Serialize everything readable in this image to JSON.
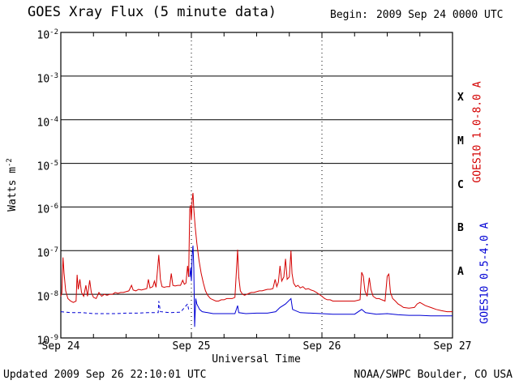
{
  "chart_data": {
    "type": "line",
    "title": "GOES Xray Flux (5 minute data)",
    "begin_label": "Begin:",
    "begin_value": "2009 Sep 24 0000 UTC",
    "xlabel": "Universal Time",
    "ylabel": "Watts m^-2",
    "x_unit": "hours since 2009 Sep 24 0000 UTC",
    "xlim": [
      0,
      72
    ],
    "ylim": [
      1e-09,
      0.01
    ],
    "grid": "solid horizontal lines at each decade, dotted vertical lines at day boundaries",
    "x_ticks": [
      {
        "hours": 0,
        "label": "Sep 24"
      },
      {
        "hours": 24,
        "label": "Sep 25"
      },
      {
        "hours": 48,
        "label": "Sep 26"
      },
      {
        "hours": 72,
        "label": "Sep 27"
      }
    ],
    "y_tick_log10": [
      -2,
      -3,
      -4,
      -5,
      -6,
      -7,
      -8,
      -9
    ],
    "grid_log10": [
      -3,
      -4,
      -5,
      -6,
      -7,
      -8
    ],
    "day_lines_hours": [
      24,
      48
    ],
    "flare_classes": [
      {
        "label": "X",
        "log10_flux": -3.5
      },
      {
        "label": "M",
        "log10_flux": -4.5
      },
      {
        "label": "C",
        "log10_flux": -5.5
      },
      {
        "label": "B",
        "log10_flux": -6.5
      },
      {
        "label": "A",
        "log10_flux": -7.5
      }
    ],
    "series": [
      {
        "name": "GOES10 1.0-8.0 A",
        "color": "#d40000",
        "points": [
          [
            0,
            9e-09
          ],
          [
            0.2,
            1.1e-08
          ],
          [
            0.4,
            7e-08
          ],
          [
            0.6,
            3e-08
          ],
          [
            0.9,
            1.2e-08
          ],
          [
            1.3,
            8e-09
          ],
          [
            1.8,
            7e-09
          ],
          [
            2.3,
            6.5e-09
          ],
          [
            2.8,
            7e-09
          ],
          [
            3,
            2.8e-08
          ],
          [
            3.2,
            1.3e-08
          ],
          [
            3.5,
            2.2e-08
          ],
          [
            3.8,
            1.1e-08
          ],
          [
            4.2,
            9e-09
          ],
          [
            4.6,
            1.6e-08
          ],
          [
            4.9,
            9e-09
          ],
          [
            5.3,
            2.1e-08
          ],
          [
            5.6,
            1.1e-08
          ],
          [
            6,
            8.5e-09
          ],
          [
            6.5,
            8e-09
          ],
          [
            7,
            1.1e-08
          ],
          [
            7.5,
            9e-09
          ],
          [
            8,
            1e-08
          ],
          [
            8.5,
            9.5e-09
          ],
          [
            9,
            1e-08
          ],
          [
            9.5,
            1e-08
          ],
          [
            10,
            1.1e-08
          ],
          [
            10.5,
            1.05e-08
          ],
          [
            11,
            1.1e-08
          ],
          [
            11.5,
            1.1e-08
          ],
          [
            12,
            1.15e-08
          ],
          [
            12.5,
            1.2e-08
          ],
          [
            13,
            1.6e-08
          ],
          [
            13.3,
            1.25e-08
          ],
          [
            13.8,
            1.2e-08
          ],
          [
            14.3,
            1.3e-08
          ],
          [
            14.8,
            1.25e-08
          ],
          [
            15.3,
            1.3e-08
          ],
          [
            15.8,
            1.35e-08
          ],
          [
            16.1,
            2.2e-08
          ],
          [
            16.4,
            1.4e-08
          ],
          [
            16.9,
            1.5e-08
          ],
          [
            17.2,
            2e-08
          ],
          [
            17.5,
            1.45e-08
          ],
          [
            18,
            8e-08
          ],
          [
            18.3,
            2.2e-08
          ],
          [
            18.6,
            1.5e-08
          ],
          [
            19,
            1.45e-08
          ],
          [
            19.5,
            1.5e-08
          ],
          [
            20,
            1.5e-08
          ],
          [
            20.3,
            3e-08
          ],
          [
            20.6,
            1.6e-08
          ],
          [
            21,
            1.55e-08
          ],
          [
            21.5,
            1.6e-08
          ],
          [
            22,
            1.6e-08
          ],
          [
            22.4,
            2.1e-08
          ],
          [
            22.7,
            1.7e-08
          ],
          [
            23,
            1.8e-08
          ],
          [
            23.3,
            4.5e-08
          ],
          [
            23.5,
            2.5e-08
          ],
          [
            23.7,
            9e-07
          ],
          [
            23.85,
            1.1e-06
          ],
          [
            24,
            5e-07
          ],
          [
            24.15,
            1.5e-06
          ],
          [
            24.3,
            2.1e-06
          ],
          [
            24.45,
            9e-07
          ],
          [
            24.7,
            3.5e-07
          ],
          [
            25,
            1.5e-07
          ],
          [
            25.4,
            6e-08
          ],
          [
            25.8,
            3e-08
          ],
          [
            26.2,
            1.8e-08
          ],
          [
            26.6,
            1.2e-08
          ],
          [
            27,
            9.5e-09
          ],
          [
            27.5,
            8e-09
          ],
          [
            28,
            7.5e-09
          ],
          [
            28.5,
            7e-09
          ],
          [
            29,
            7e-09
          ],
          [
            29.5,
            7.5e-09
          ],
          [
            30,
            7.5e-09
          ],
          [
            30.5,
            8e-09
          ],
          [
            31,
            8e-09
          ],
          [
            31.5,
            8e-09
          ],
          [
            32,
            8.5e-09
          ],
          [
            32.5,
            1.05e-07
          ],
          [
            32.7,
            2.5e-08
          ],
          [
            33,
            1.2e-08
          ],
          [
            33.4,
            1e-08
          ],
          [
            33.8,
            9.5e-09
          ],
          [
            34.2,
            1e-08
          ],
          [
            34.6,
            1.05e-08
          ],
          [
            35,
            1.1e-08
          ],
          [
            35.5,
            1.1e-08
          ],
          [
            36,
            1.15e-08
          ],
          [
            36.5,
            1.2e-08
          ],
          [
            37,
            1.2e-08
          ],
          [
            37.5,
            1.25e-08
          ],
          [
            38,
            1.3e-08
          ],
          [
            38.5,
            1.3e-08
          ],
          [
            39,
            1.35e-08
          ],
          [
            39.4,
            2.2e-08
          ],
          [
            39.7,
            1.5e-08
          ],
          [
            40,
            1.9e-08
          ],
          [
            40.3,
            4.5e-08
          ],
          [
            40.6,
            2e-08
          ],
          [
            41,
            2.5e-08
          ],
          [
            41.3,
            6.5e-08
          ],
          [
            41.6,
            2.2e-08
          ],
          [
            42,
            2.5e-08
          ],
          [
            42.3,
            1e-07
          ],
          [
            42.5,
            3e-08
          ],
          [
            42.8,
            1.8e-08
          ],
          [
            43.2,
            1.5e-08
          ],
          [
            43.6,
            1.6e-08
          ],
          [
            44,
            1.4e-08
          ],
          [
            44.5,
            1.5e-08
          ],
          [
            45,
            1.3e-08
          ],
          [
            45.5,
            1.35e-08
          ],
          [
            46,
            1.25e-08
          ],
          [
            46.5,
            1.2e-08
          ],
          [
            47,
            1.1e-08
          ],
          [
            47.5,
            1e-08
          ],
          [
            48,
            9e-09
          ],
          [
            48.5,
            8e-09
          ],
          [
            49,
            7.5e-09
          ],
          [
            49.5,
            7.5e-09
          ],
          [
            50,
            7e-09
          ],
          [
            51,
            7e-09
          ],
          [
            52,
            7e-09
          ],
          [
            53,
            7e-09
          ],
          [
            54,
            7e-09
          ],
          [
            55,
            7.5e-09
          ],
          [
            55.3,
            3.2e-08
          ],
          [
            55.6,
            2.6e-08
          ],
          [
            55.9,
            1.2e-08
          ],
          [
            56.3,
            9e-09
          ],
          [
            56.7,
            2.4e-08
          ],
          [
            57,
            1.3e-08
          ],
          [
            57.4,
            9e-09
          ],
          [
            58,
            8e-09
          ],
          [
            58.5,
            8e-09
          ],
          [
            59,
            7.5e-09
          ],
          [
            59.6,
            7e-09
          ],
          [
            60,
            2.6e-08
          ],
          [
            60.3,
            2.9e-08
          ],
          [
            60.6,
            1.1e-08
          ],
          [
            61,
            8e-09
          ],
          [
            61.5,
            7e-09
          ],
          [
            62,
            6e-09
          ],
          [
            62.5,
            5.5e-09
          ],
          [
            63,
            5e-09
          ],
          [
            64,
            4.8e-09
          ],
          [
            65,
            5e-09
          ],
          [
            65.5,
            6e-09
          ],
          [
            66,
            6.5e-09
          ],
          [
            66.5,
            6e-09
          ],
          [
            67,
            5.5e-09
          ],
          [
            68,
            5e-09
          ],
          [
            69,
            4.5e-09
          ],
          [
            70,
            4.2e-09
          ],
          [
            71,
            4e-09
          ],
          [
            72,
            4e-09
          ]
        ]
      },
      {
        "name": "GOES10 0.5-4.0 A",
        "color": "#0000d4",
        "dash_before_hours": 23.6,
        "points": [
          [
            0,
            4e-09
          ],
          [
            2,
            3.8e-09
          ],
          [
            4,
            3.8e-09
          ],
          [
            6,
            3.6e-09
          ],
          [
            8,
            3.6e-09
          ],
          [
            10,
            3.6e-09
          ],
          [
            12,
            3.7e-09
          ],
          [
            14,
            3.7e-09
          ],
          [
            16,
            3.8e-09
          ],
          [
            17.9,
            3.8e-09
          ],
          [
            18,
            7e-09
          ],
          [
            18.3,
            4e-09
          ],
          [
            20,
            3.8e-09
          ],
          [
            22,
            3.9e-09
          ],
          [
            23.3,
            6e-09
          ],
          [
            23.5,
            4.5e-09
          ],
          [
            23.7,
            2.5e-08
          ],
          [
            23.85,
            4e-08
          ],
          [
            24,
            2e-08
          ],
          [
            24.15,
            8e-08
          ],
          [
            24.3,
            1.3e-07
          ],
          [
            24.45,
            4e-08
          ],
          [
            24.6,
            1.8e-09
          ],
          [
            24.8,
            8e-09
          ],
          [
            25,
            6e-09
          ],
          [
            25.5,
            4.5e-09
          ],
          [
            26,
            4e-09
          ],
          [
            27,
            3.8e-09
          ],
          [
            28,
            3.6e-09
          ],
          [
            30,
            3.6e-09
          ],
          [
            32,
            3.6e-09
          ],
          [
            32.5,
            5.5e-09
          ],
          [
            32.7,
            3.8e-09
          ],
          [
            34,
            3.6e-09
          ],
          [
            36,
            3.7e-09
          ],
          [
            38,
            3.7e-09
          ],
          [
            39.5,
            4e-09
          ],
          [
            40.3,
            5e-09
          ],
          [
            41.3,
            6e-09
          ],
          [
            42.3,
            8e-09
          ],
          [
            42.6,
            4.5e-09
          ],
          [
            44,
            3.8e-09
          ],
          [
            46,
            3.7e-09
          ],
          [
            48,
            3.6e-09
          ],
          [
            50,
            3.5e-09
          ],
          [
            52,
            3.5e-09
          ],
          [
            54,
            3.5e-09
          ],
          [
            55.3,
            4.5e-09
          ],
          [
            56,
            3.8e-09
          ],
          [
            58,
            3.5e-09
          ],
          [
            60,
            3.6e-09
          ],
          [
            62,
            3.4e-09
          ],
          [
            64,
            3.3e-09
          ],
          [
            66,
            3.3e-09
          ],
          [
            68,
            3.2e-09
          ],
          [
            70,
            3.2e-09
          ],
          [
            72,
            3.2e-09
          ]
        ]
      }
    ]
  },
  "footer": {
    "updated": "Updated 2009 Sep 26 22:10:01 UTC",
    "source": "NOAA/SWPC Boulder, CO USA"
  }
}
